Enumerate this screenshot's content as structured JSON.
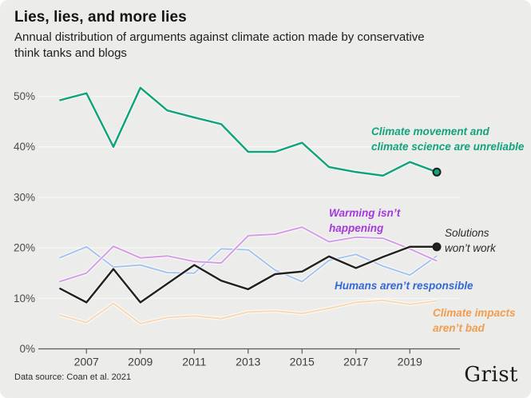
{
  "header": {
    "title": "Lies, lies, and more lies",
    "subtitle": "Annual distribution of arguments against climate action made by conservative\nthink tanks and blogs"
  },
  "chart_data": {
    "type": "line",
    "x": [
      2006,
      2007,
      2008,
      2009,
      2010,
      2011,
      2012,
      2013,
      2014,
      2015,
      2016,
      2017,
      2018,
      2019,
      2020
    ],
    "x_tick_labels": [
      "2007",
      "2009",
      "2011",
      "2013",
      "2015",
      "2017",
      "2019"
    ],
    "x_tick_years": [
      2007,
      2009,
      2011,
      2013,
      2015,
      2017,
      2019
    ],
    "y_tick_labels": [
      "0%",
      "10%",
      "20%",
      "30%",
      "40%",
      "50%"
    ],
    "y_tick_values": [
      0,
      10,
      20,
      30,
      40,
      50
    ],
    "ylim": [
      0,
      55
    ],
    "grid": "horizontal-light",
    "legend_position": "inline-annotations",
    "background_color": "#ececea",
    "gridline_color": "#f7f7f4",
    "axis_color": "#5a5a5a",
    "tick_label_color": "#3d3d3d",
    "series": [
      {
        "name": "climate-impacts-arent-bad",
        "label": "Climate impacts\naren’t bad",
        "color": "#f6d9b2",
        "label_color": "#f09d4d",
        "line_width": 2,
        "end_dot": false,
        "values": [
          6.7,
          5.2,
          9.0,
          5.0,
          6.2,
          6.5,
          6.0,
          7.3,
          7.5,
          7.0,
          8.0,
          9.2,
          9.6,
          8.8,
          9.5
        ]
      },
      {
        "name": "humans-arent-responsible",
        "label": "Humans aren’t responsible",
        "color": "#a6c3ee",
        "label_color": "#3468d3",
        "line_width": 2,
        "end_dot": false,
        "values": [
          18.0,
          20.2,
          16.2,
          16.6,
          15.1,
          15.0,
          19.8,
          19.6,
          15.6,
          13.3,
          17.5,
          18.7,
          16.4,
          14.6,
          18.4
        ]
      },
      {
        "name": "warming-isnt-happening",
        "label": "Warming isn’t\nhappening",
        "color": "#d49be7",
        "label_color": "#a438dd",
        "line_width": 2,
        "end_dot": false,
        "values": [
          13.3,
          15.0,
          20.3,
          18.0,
          18.4,
          17.3,
          17.0,
          22.4,
          22.7,
          24.1,
          21.2,
          22.1,
          21.9,
          19.8,
          17.4
        ]
      },
      {
        "name": "solutions-wont-work",
        "label": "Solutions\nwon’t work",
        "color": "#242220",
        "label_color": "#2a2a28",
        "line_width": 2.5,
        "end_dot": true,
        "dot_fill": "#242220",
        "values": [
          12.0,
          9.2,
          15.8,
          9.2,
          12.9,
          16.6,
          13.5,
          11.8,
          14.8,
          15.3,
          18.3,
          16.0,
          18.2,
          20.2,
          20.2
        ]
      },
      {
        "name": "climate-science-unreliable",
        "label": "Climate movement and\nclimate science are unreliable",
        "color": "#12a37c",
        "label_color": "#12a37c",
        "line_width": 2.5,
        "end_dot": true,
        "dot_fill": "#12a37c",
        "values": [
          49.2,
          50.6,
          40.0,
          51.7,
          47.2,
          45.8,
          44.5,
          39.0,
          39.0,
          40.8,
          36.0,
          35.0,
          34.3,
          37.0,
          35.0
        ]
      }
    ]
  },
  "footer": {
    "source": "Data source: Coan et al. 2021",
    "logo": "Grist"
  }
}
